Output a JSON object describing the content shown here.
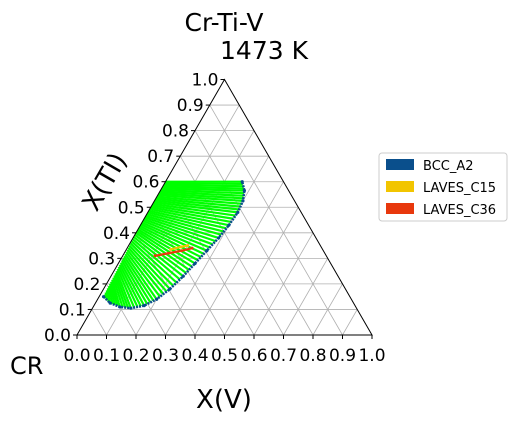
{
  "chart_data": {
    "type": "scatter",
    "title": "Cr-Ti-V",
    "subtitle": "1473  K",
    "xlabel": "X(V)",
    "ylabel": "X(TI)",
    "corner_label": "CR",
    "xlim": [
      0,
      1
    ],
    "ylim": [
      0,
      1
    ],
    "x_ticks": [
      "0.0",
      "0.1",
      "0.2",
      "0.3",
      "0.4",
      "0.5",
      "0.6",
      "0.7",
      "0.8",
      "0.9",
      "1.0"
    ],
    "y_ticks": [
      "0.0",
      "0.1",
      "0.2",
      "0.3",
      "0.4",
      "0.5",
      "0.6",
      "0.7",
      "0.8",
      "0.9",
      "1.0"
    ],
    "grid": true,
    "legend_position": "right",
    "legend": [
      {
        "label": "BCC_A2",
        "color": "#0a4f8c"
      },
      {
        "label": "LAVES_C15",
        "color": "#f2c500"
      },
      {
        "label": "LAVES_C36",
        "color": "#e8380d"
      }
    ],
    "tie_line_color": "#00ff00",
    "series": [
      {
        "name": "BCC_A2",
        "color": "#0a4f8c",
        "lower_boundary": [
          {
            "x": 0.015,
            "y": 0.15
          },
          {
            "x": 0.05,
            "y": 0.125
          },
          {
            "x": 0.09,
            "y": 0.11
          },
          {
            "x": 0.13,
            "y": 0.105
          },
          {
            "x": 0.17,
            "y": 0.115
          },
          {
            "x": 0.2,
            "y": 0.14
          },
          {
            "x": 0.225,
            "y": 0.18
          },
          {
            "x": 0.245,
            "y": 0.23
          },
          {
            "x": 0.26,
            "y": 0.28
          },
          {
            "x": 0.275,
            "y": 0.33
          },
          {
            "x": 0.29,
            "y": 0.38
          }
        ],
        "upper_boundary": [
          {
            "x": 0.3,
            "y": 0.43
          },
          {
            "x": 0.305,
            "y": 0.48
          },
          {
            "x": 0.3,
            "y": 0.525
          },
          {
            "x": 0.285,
            "y": 0.565
          },
          {
            "x": 0.26,
            "y": 0.6
          }
        ]
      },
      {
        "name": "LAVES_C15",
        "color": "#f2c500",
        "points": [
          {
            "x": 0.15,
            "y": 0.335
          },
          {
            "x": 0.18,
            "y": 0.345
          },
          {
            "x": 0.2,
            "y": 0.35
          }
        ]
      },
      {
        "name": "LAVES_C36",
        "color": "#e8380d",
        "points": [
          {
            "x": 0.11,
            "y": 0.31
          },
          {
            "x": 0.15,
            "y": 0.32
          },
          {
            "x": 0.19,
            "y": 0.33
          },
          {
            "x": 0.22,
            "y": 0.34
          }
        ]
      }
    ]
  }
}
